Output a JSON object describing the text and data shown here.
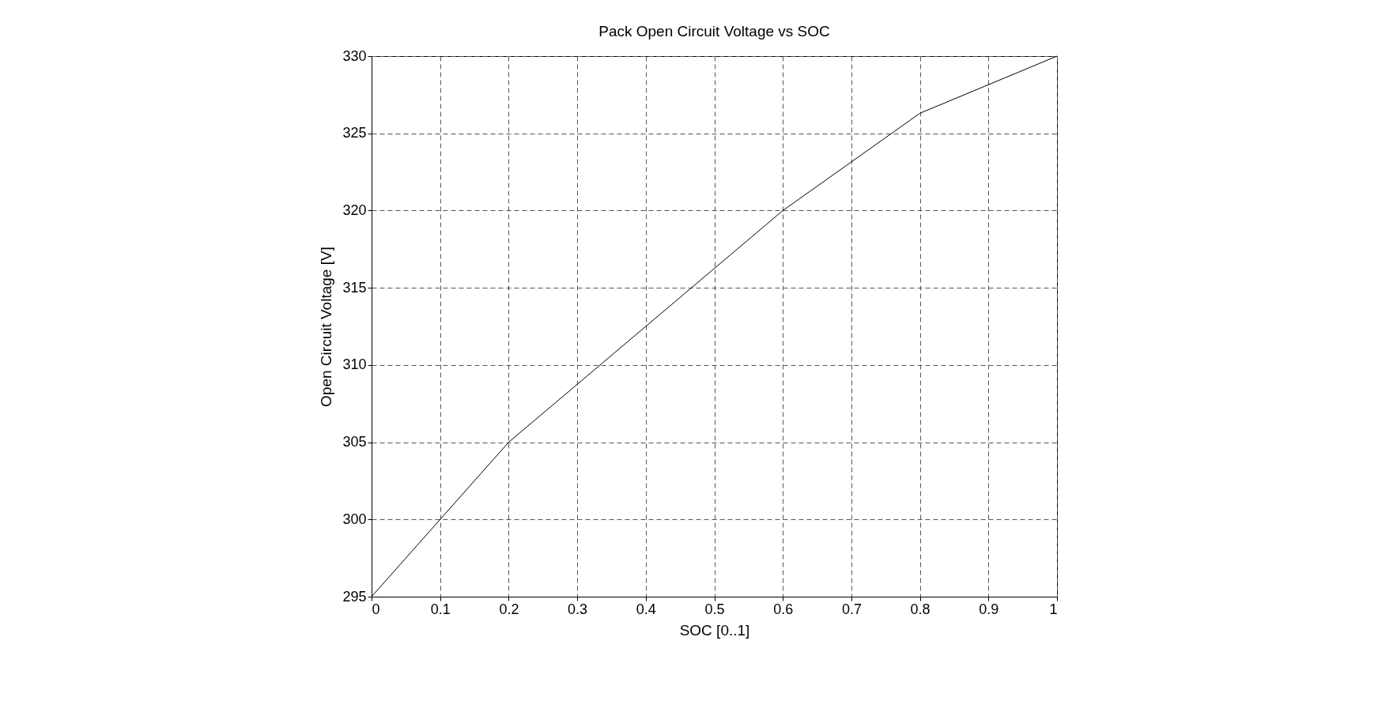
{
  "chart_data": {
    "type": "line",
    "title": "Pack Open Circuit Voltage vs SOC",
    "xlabel": "SOC [0..1]",
    "ylabel": "Open Circuit Voltage [V]",
    "x": [
      0,
      0.2,
      0.6,
      0.8,
      1
    ],
    "values": [
      295,
      305,
      320,
      326.3,
      330
    ],
    "color": "#000000",
    "xlim": [
      0,
      1
    ],
    "xticks": [
      0,
      0.1,
      0.2,
      0.3,
      0.4,
      0.5,
      0.6,
      0.7,
      0.8,
      0.9,
      1
    ],
    "ylim": [
      295,
      330
    ],
    "yticks": [
      295,
      300,
      305,
      310,
      315,
      320,
      325,
      330
    ],
    "grid": true,
    "line_style": "solid"
  }
}
